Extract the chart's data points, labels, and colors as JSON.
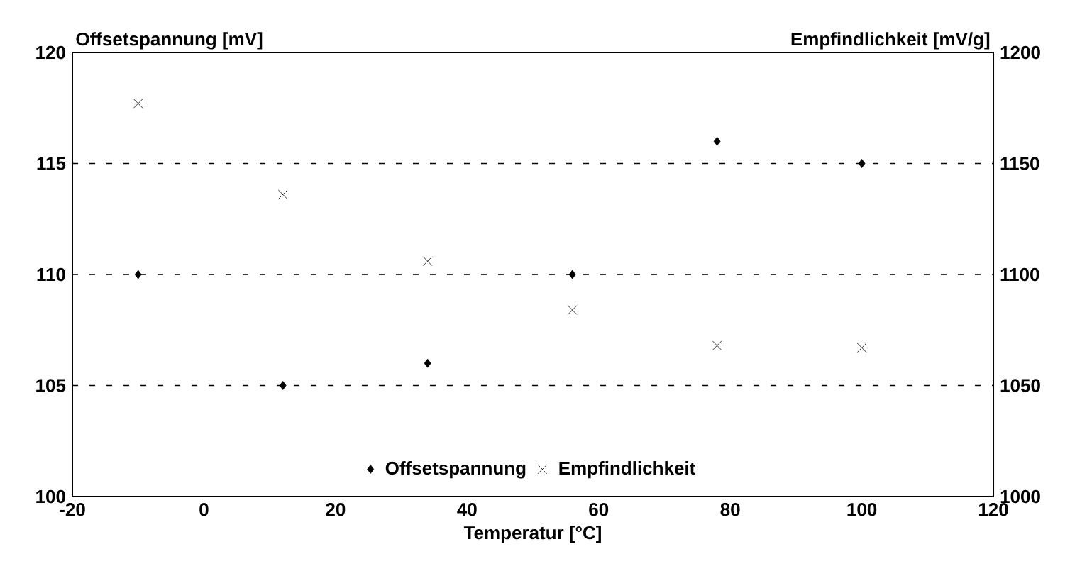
{
  "chart_data": {
    "type": "scatter",
    "xlabel": "Temperatur [°C]",
    "ylabel": "Offsetspannung [mV]",
    "y2label": "Empfindlichkeit [mV/g]",
    "x": [
      -10,
      12,
      34,
      56,
      78,
      100
    ],
    "series": [
      {
        "name": "Offsetspannung",
        "color": "#000000",
        "marker": "diamond",
        "values": [
          110,
          105,
          106,
          110,
          116,
          115
        ]
      },
      {
        "name": "Empfindlichkeit",
        "color": "#000000",
        "marker": "cross",
        "axis": "y2",
        "values": [
          1177,
          1136,
          1106,
          1084,
          1068,
          1067
        ]
      }
    ],
    "xlim": [
      -20,
      120
    ],
    "xticks": [
      -20,
      0,
      20,
      40,
      60,
      80,
      100,
      120
    ],
    "ylim": [
      100,
      120
    ],
    "yticks": [
      100,
      105,
      110,
      115,
      120
    ],
    "y2lim": [
      1000,
      1200
    ],
    "y2ticks": [
      1000,
      1050,
      1100,
      1150,
      1200
    ],
    "grid": "y",
    "legend": "bottom"
  }
}
